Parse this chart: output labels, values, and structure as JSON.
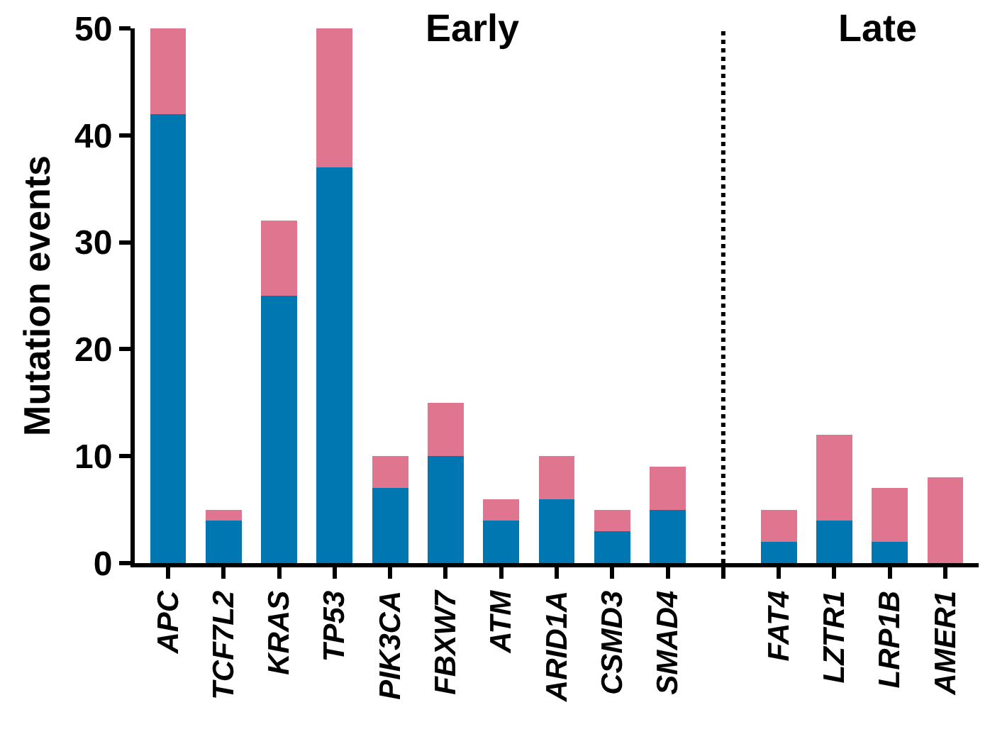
{
  "chart_data": {
    "type": "bar",
    "stacked": true,
    "ylabel": "Mutation events",
    "categories": [
      "APC",
      "TCF7L2",
      "KRAS",
      "TP53",
      "PIK3CA",
      "FBXW7",
      "ATM",
      "ARID1A",
      "CSMD3",
      "SMAD4",
      null,
      "FAT4",
      "LZTR1",
      "LRP1B",
      "AMER1"
    ],
    "series": [
      {
        "color": "#0077b0",
        "values": [
          42,
          4,
          25,
          37,
          7,
          10,
          4,
          6,
          3,
          5,
          null,
          2,
          4,
          2,
          0
        ]
      },
      {
        "color": "#e07590",
        "values": [
          8,
          1,
          7,
          13,
          3,
          5,
          2,
          4,
          2,
          4,
          null,
          3,
          8,
          5,
          8
        ]
      }
    ],
    "ylim": [
      0,
      50
    ],
    "yticks": [
      0,
      10,
      20,
      30,
      40,
      50
    ],
    "annotations": [
      "Early",
      "Late"
    ]
  }
}
